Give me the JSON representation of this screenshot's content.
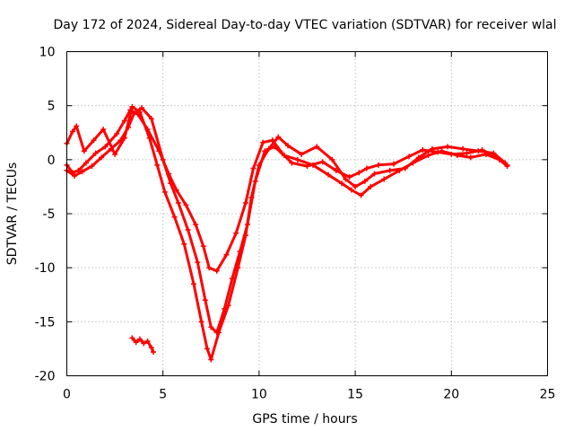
{
  "chart_data": {
    "type": "scatter",
    "title": "Day 172 of 2024, Sidereal Day-to-day VTEC variation (SDTVAR) for receiver wlal",
    "xlabel": "GPS time / hours",
    "ylabel": "SDTVAR / TECUs",
    "xlim": [
      0,
      25
    ],
    "ylim": [
      -20,
      10
    ],
    "xticks": [
      0,
      5,
      10,
      15,
      20,
      25
    ],
    "yticks": [
      -20,
      -15,
      -10,
      -5,
      0,
      5,
      10
    ],
    "grid": true,
    "marker": "+",
    "color": "#ff0000",
    "series": [
      {
        "name": "track-1",
        "x": [
          0,
          0.3,
          0.6,
          1.0,
          1.5,
          2.0,
          2.6,
          3.0,
          3.3,
          3.7,
          4.2,
          4.8,
          5.3,
          5.7,
          6.2,
          6.7,
          7.1,
          7.4,
          7.8,
          8.3,
          8.8,
          9.3,
          9.7,
          10.2,
          10.7,
          11.2,
          11.7,
          12.5,
          13.3,
          14.0,
          14.7,
          15.2,
          15.6,
          16.2,
          17.0,
          17.8,
          18.5,
          19.3,
          20.0,
          20.8,
          21.6,
          22.3,
          22.9
        ],
        "y": [
          -0.5,
          -1.2,
          -1.0,
          -0.3,
          0.6,
          1.2,
          2.4,
          3.6,
          4.6,
          4.2,
          2.8,
          0.8,
          -1.3,
          -2.8,
          -4.2,
          -6.0,
          -8.0,
          -10.0,
          -10.3,
          -8.8,
          -6.8,
          -4.0,
          -0.8,
          1.6,
          1.8,
          0.6,
          -0.3,
          -0.6,
          -0.2,
          -1.0,
          -1.6,
          -1.2,
          -0.8,
          -0.5,
          -0.4,
          0.3,
          0.9,
          0.7,
          0.5,
          0.6,
          0.9,
          0.3,
          -0.6
        ]
      },
      {
        "name": "track-2",
        "x": [
          0,
          0.4,
          0.8,
          1.3,
          1.8,
          2.3,
          2.8,
          3.2,
          3.5,
          3.9,
          4.4,
          5.0,
          5.4,
          5.8,
          6.3,
          6.8,
          7.2,
          7.5,
          7.8,
          8.2,
          8.6,
          9.0,
          9.4,
          9.8,
          10.3,
          10.8,
          11.3,
          12.0,
          12.8,
          13.6,
          14.3,
          14.8,
          15.3,
          15.8,
          16.5,
          17.3,
          18.0,
          18.8,
          19.5,
          20.3,
          21.0,
          21.8,
          22.5,
          22.9
        ],
        "y": [
          -1.0,
          -1.5,
          -1.1,
          -0.6,
          0.2,
          1.0,
          1.8,
          3.0,
          4.3,
          4.8,
          3.8,
          0.0,
          -2.2,
          -4.0,
          -6.5,
          -9.5,
          -13.0,
          -15.5,
          -16.0,
          -13.8,
          -11.0,
          -8.5,
          -6.0,
          -2.0,
          0.8,
          1.2,
          0.4,
          0.0,
          -0.5,
          -1.4,
          -2.2,
          -2.8,
          -3.3,
          -2.5,
          -1.8,
          -1.0,
          -0.3,
          0.4,
          0.8,
          0.4,
          0.2,
          0.5,
          0.0,
          -0.5
        ]
      },
      {
        "name": "track-3",
        "x": [
          0,
          0.3,
          0.5,
          0.9,
          1.4,
          1.9,
          2.5,
          3.0,
          3.4,
          3.8,
          4.3,
          4.7,
          5.1,
          5.6,
          6.1,
          6.6,
          7.0,
          7.3,
          7.5,
          7.9,
          8.4,
          8.9,
          9.3,
          9.6,
          10.0,
          10.5,
          11.0,
          11.5,
          12.2,
          13.0,
          13.8,
          14.5,
          15.0,
          15.5,
          16.0,
          16.8,
          17.6,
          18.3,
          19.0,
          19.8,
          20.6,
          21.4,
          22.2,
          22.8
        ],
        "y": [
          1.5,
          2.6,
          3.1,
          0.8,
          1.8,
          2.8,
          0.5,
          2.0,
          4.9,
          4.4,
          2.0,
          -0.5,
          -3.0,
          -5.3,
          -7.8,
          -11.5,
          -15.0,
          -17.5,
          -18.5,
          -16.0,
          -13.5,
          -10.0,
          -7.0,
          -3.5,
          -0.5,
          1.0,
          2.1,
          1.3,
          0.5,
          1.2,
          0.0,
          -1.8,
          -2.5,
          -2.0,
          -1.3,
          -1.0,
          -0.8,
          0.2,
          1.0,
          1.2,
          1.0,
          0.8,
          0.6,
          -0.3
        ]
      },
      {
        "name": "track-4",
        "x": [
          3.4,
          3.6,
          3.8,
          4.0,
          4.2,
          4.4,
          4.5
        ],
        "y": [
          -16.5,
          -16.9,
          -16.6,
          -17.0,
          -16.8,
          -17.4,
          -17.8
        ]
      }
    ]
  }
}
